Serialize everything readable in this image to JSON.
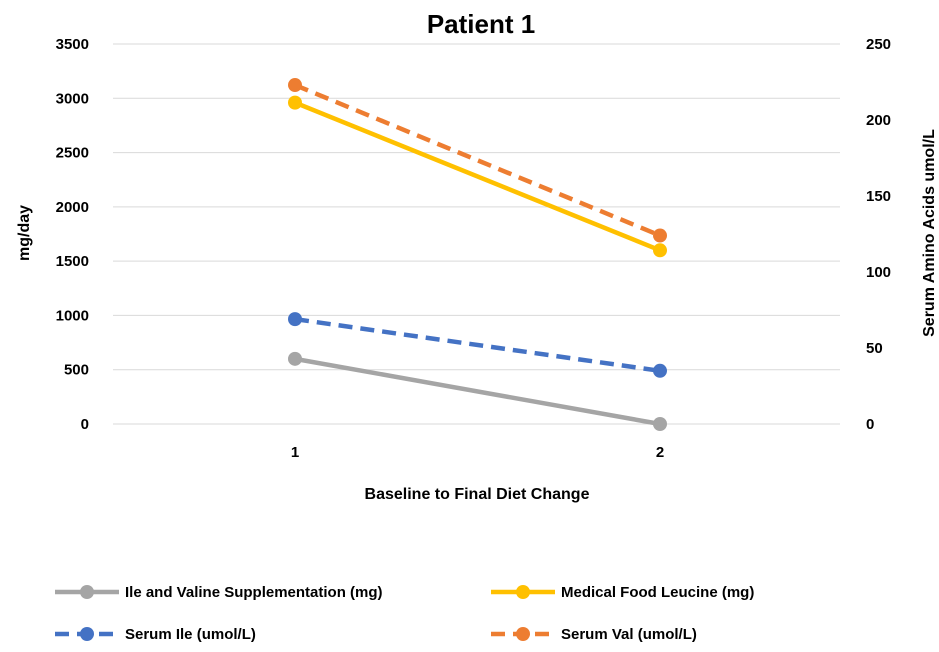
{
  "chart_data": {
    "type": "line",
    "title": "Patient 1",
    "xlabel": "Baseline to Final Diet Change",
    "ylabel_left": "mg/day",
    "ylabel_right": "Serum Amino Acids umol/L",
    "x": [
      1,
      2
    ],
    "ylim_left": [
      0,
      3500
    ],
    "ylim_right": [
      0,
      250
    ],
    "yticks_left": [
      0,
      500,
      1000,
      1500,
      2000,
      2500,
      3000,
      3500
    ],
    "yticks_right": [
      0,
      50,
      100,
      150,
      200,
      250
    ],
    "grid": true,
    "legend_position": "bottom",
    "series": [
      {
        "name": "Ile and Valine Supplementation (mg)",
        "axis": "left",
        "values": [
          600,
          0
        ],
        "color": "#a5a5a5",
        "dash": "solid"
      },
      {
        "name": "Medical Food Leucine (mg)",
        "axis": "left",
        "values": [
          2960,
          1600
        ],
        "color": "#ffc000",
        "dash": "solid"
      },
      {
        "name": "Serum Ile (umol/L)",
        "axis": "right",
        "values": [
          69,
          35
        ],
        "color": "#4472c4",
        "dash": "dashed"
      },
      {
        "name": "Serum Val (umol/L)",
        "axis": "right",
        "values": [
          223,
          124
        ],
        "color": "#ed7d31",
        "dash": "dashed"
      }
    ]
  }
}
